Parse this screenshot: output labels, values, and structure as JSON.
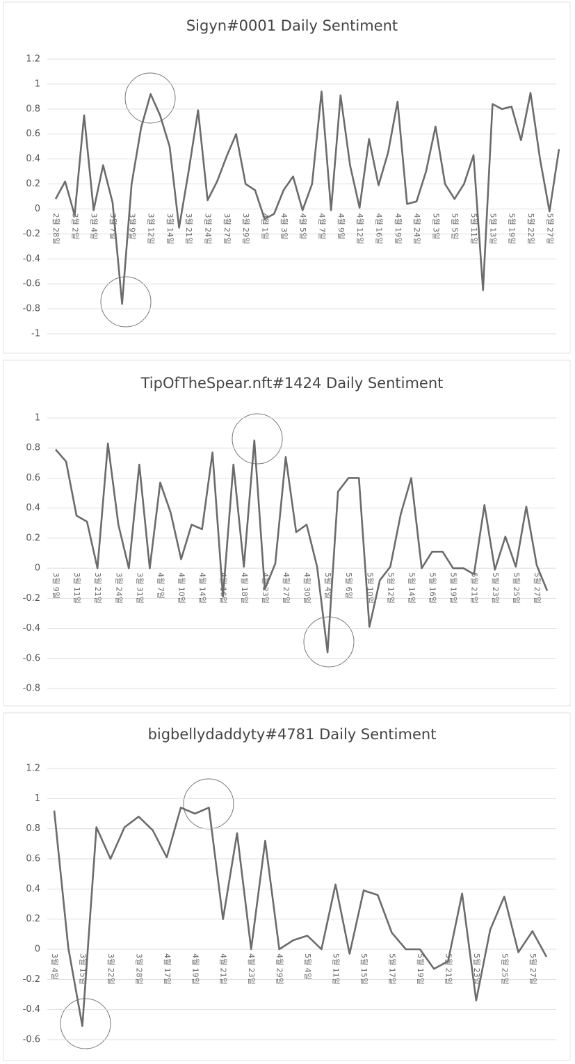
{
  "chart_data": [
    {
      "type": "line",
      "title": "Sigyn#0001 Daily Sentiment",
      "categories": [
        "2월 28일",
        null,
        "3월 2일",
        null,
        "3월 4일",
        null,
        "3월 7일",
        null,
        "3월 9일",
        null,
        "3월 12일",
        null,
        "3월 14일",
        null,
        "3월 21일",
        null,
        "3월 24일",
        null,
        "3월 27일",
        null,
        "3월 29일",
        null,
        "4월 1일",
        null,
        "4월 3일",
        null,
        "4월 5일",
        null,
        "4월 7일",
        null,
        "4월 9일",
        null,
        "4월 12일",
        null,
        "4월 16일",
        null,
        "4월 19일",
        null,
        "4월 24일",
        null,
        "5월 3일",
        null,
        "5월 5일",
        null,
        "5월 11일",
        null,
        "5월 13일",
        null,
        "5월 19일",
        null,
        "5월 22일",
        null,
        "5월 27일",
        null
      ],
      "values": [
        0.08,
        0.22,
        -0.05,
        0.75,
        -0.01,
        0.35,
        0.05,
        -0.76,
        0.2,
        0.65,
        0.92,
        0.75,
        0.5,
        -0.15,
        0.3,
        0.79,
        0.07,
        0.22,
        0.42,
        0.6,
        0.2,
        0.15,
        -0.08,
        -0.04,
        0.15,
        0.26,
        -0.01,
        0.2,
        0.94,
        -0.01,
        0.91,
        0.35,
        0.01,
        0.56,
        0.19,
        0.45,
        0.86,
        0.04,
        0.06,
        0.3,
        0.66,
        0.2,
        0.08,
        0.2,
        0.43,
        -0.65,
        0.84,
        0.8,
        0.82,
        0.55,
        0.93,
        0.4,
        -0.02,
        0.48
      ],
      "color": "#6b6b6b",
      "ylim": [
        -1,
        1.2
      ],
      "yticks": [
        1.2,
        1,
        0.8,
        0.6,
        0.4,
        0.2,
        0,
        -0.2,
        -0.4,
        -0.6,
        -0.8,
        -1
      ],
      "grid": true
    },
    {
      "type": "line",
      "title": "TipOfTheSpear.nft#1424 Daily Sentiment",
      "categories": [
        "3월 9일",
        null,
        "3월 11일",
        null,
        "3월 21일",
        null,
        "3월 24일",
        null,
        "3월 31일",
        null,
        "4월 7일",
        null,
        "4월 10일",
        null,
        "4월 14일",
        null,
        "4월 16일",
        null,
        "4월 18일",
        null,
        "4월 23일",
        null,
        "4월 27일",
        null,
        "4월 30일",
        null,
        "5월 4일",
        null,
        "5월 6일",
        null,
        "5월 10일",
        null,
        "5월 12일",
        null,
        "5월 14일",
        null,
        "5월 16일",
        null,
        "5월 19일",
        null,
        "5월 21일",
        null,
        "5월 23일",
        null,
        "5월 25일",
        null,
        "5월 27일",
        null
      ],
      "values": [
        0.79,
        0.71,
        0.35,
        0.31,
        0,
        0.83,
        0.29,
        0,
        0.69,
        0,
        0.57,
        0.37,
        0.06,
        0.29,
        0.26,
        0.77,
        -0.19,
        0.69,
        0.01,
        0.85,
        -0.14,
        0.03,
        0.74,
        0.24,
        0.29,
        0.01,
        -0.56,
        0.51,
        0.6,
        0.6,
        -0.39,
        -0.08,
        0.01,
        0.36,
        0.6,
        0,
        0.11,
        0.11,
        0,
        0,
        -0.04,
        0.42,
        -0.01,
        0.21,
        0.01,
        0.41,
        0.02,
        -0.15
      ],
      "color": "#6b6b6b",
      "ylim": [
        -0.8,
        1
      ],
      "yticks": [
        1,
        0.8,
        0.6,
        0.4,
        0.2,
        0,
        -0.2,
        -0.4,
        -0.6,
        -0.8
      ],
      "grid": true
    },
    {
      "type": "line",
      "title": "bigbellydaddyty#4781 Daily Sentiment",
      "categories": [
        "3월 4일",
        null,
        "3월 15일",
        null,
        "3월 22일",
        null,
        "3월 28일",
        null,
        "4월 17일",
        null,
        "4월 19일",
        null,
        "4월 21일",
        null,
        "4월 23일",
        null,
        "4월 29일",
        null,
        "5월 4일",
        null,
        "5월 11일",
        null,
        "5월 15일",
        null,
        "5월 17일",
        null,
        "5월 19일",
        null,
        "5월 21일",
        null,
        "5월 23일",
        null,
        "5월 25일",
        null,
        "5월 27일",
        null
      ],
      "values": [
        0.92,
        0.01,
        -0.51,
        0.81,
        0.6,
        0.81,
        0.88,
        0.79,
        0.61,
        0.94,
        0.9,
        0.94,
        0.2,
        0.77,
        0,
        0.72,
        0,
        0.06,
        0.09,
        0,
        0.43,
        -0.03,
        0.39,
        0.36,
        0.11,
        0,
        0,
        -0.13,
        -0.08,
        0.37,
        -0.34,
        0.13,
        0.35,
        -0.02,
        0.12,
        -0.05
      ],
      "color": "#6b6b6b",
      "ylim": [
        -0.6,
        1.2
      ],
      "yticks": [
        1.2,
        1,
        0.8,
        0.6,
        0.4,
        0.2,
        0,
        -0.2,
        -0.4,
        -0.6
      ],
      "grid": true
    }
  ]
}
